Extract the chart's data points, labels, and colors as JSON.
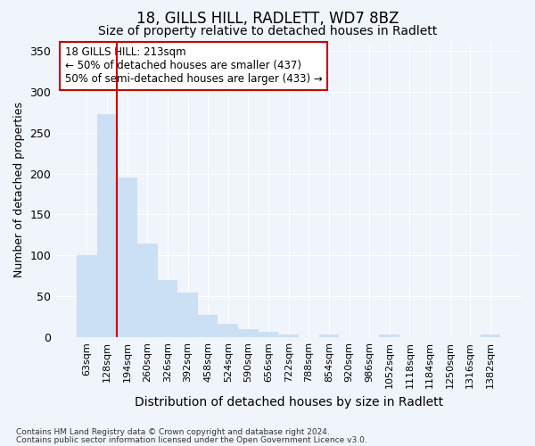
{
  "title": "18, GILLS HILL, RADLETT, WD7 8BZ",
  "subtitle": "Size of property relative to detached houses in Radlett",
  "xlabel": "Distribution of detached houses by size in Radlett",
  "ylabel": "Number of detached properties",
  "footnote1": "Contains HM Land Registry data © Crown copyright and database right 2024.",
  "footnote2": "Contains public sector information licensed under the Open Government Licence v3.0.",
  "categories": [
    "63sqm",
    "128sqm",
    "194sqm",
    "260sqm",
    "326sqm",
    "392sqm",
    "458sqm",
    "524sqm",
    "590sqm",
    "656sqm",
    "722sqm",
    "788sqm",
    "854sqm",
    "920sqm",
    "986sqm",
    "1052sqm",
    "1118sqm",
    "1184sqm",
    "1250sqm",
    "1316sqm",
    "1382sqm"
  ],
  "values": [
    100,
    272,
    195,
    115,
    70,
    55,
    28,
    17,
    10,
    7,
    4,
    0,
    4,
    0,
    0,
    4,
    0,
    0,
    0,
    0,
    4
  ],
  "bar_color": "#cce0f5",
  "background_color": "#f0f4fb",
  "grid_color": "#ffffff",
  "ylim": [
    0,
    360
  ],
  "yticks": [
    0,
    50,
    100,
    150,
    200,
    250,
    300,
    350
  ],
  "red_line_x": 1.5,
  "red_line_color": "#cc0000",
  "annotation_text": "18 GILLS HILL: 213sqm\n← 50% of detached houses are smaller (437)\n50% of semi-detached houses are larger (433) →",
  "annotation_box_color": "#ffffff",
  "annotation_box_edge_color": "#cc0000",
  "title_fontsize": 12,
  "subtitle_fontsize": 10,
  "tick_fontsize": 8,
  "ylabel_fontsize": 9,
  "xlabel_fontsize": 10,
  "annotation_fontsize": 8.5
}
